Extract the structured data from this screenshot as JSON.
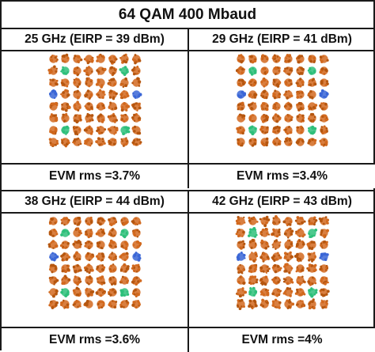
{
  "title": "64 QAM 400 Mbaud",
  "colors": {
    "regular": "#d2691e",
    "regular_dark": "#b5560f",
    "pilot_green": "#2ebf7a",
    "pilot_blue": "#3a66d6",
    "border": "#1a1a1a"
  },
  "panels": [
    {
      "header": "25 GHz (EIRP = 39 dBm)",
      "evm": "EVM rms =3.7%",
      "spread": 0.22
    },
    {
      "header": "29 GHz (EIRP = 41 dBm)",
      "evm": "EVM rms =3.4%",
      "spread": 0.2
    },
    {
      "header": "38 GHz (EIRP = 44 dBm)",
      "evm": "EVM rms =3.6%",
      "spread": 0.21
    },
    {
      "header": "42 GHz (EIRP = 43 dBm)",
      "evm": "EVM rms =4%",
      "spread": 0.24
    }
  ],
  "constellation": {
    "grid": 8,
    "green_points": [
      [
        1,
        1
      ],
      [
        6,
        1
      ],
      [
        1,
        6
      ],
      [
        6,
        6
      ]
    ],
    "blue_points": [
      [
        0,
        3
      ],
      [
        7,
        3
      ]
    ]
  }
}
